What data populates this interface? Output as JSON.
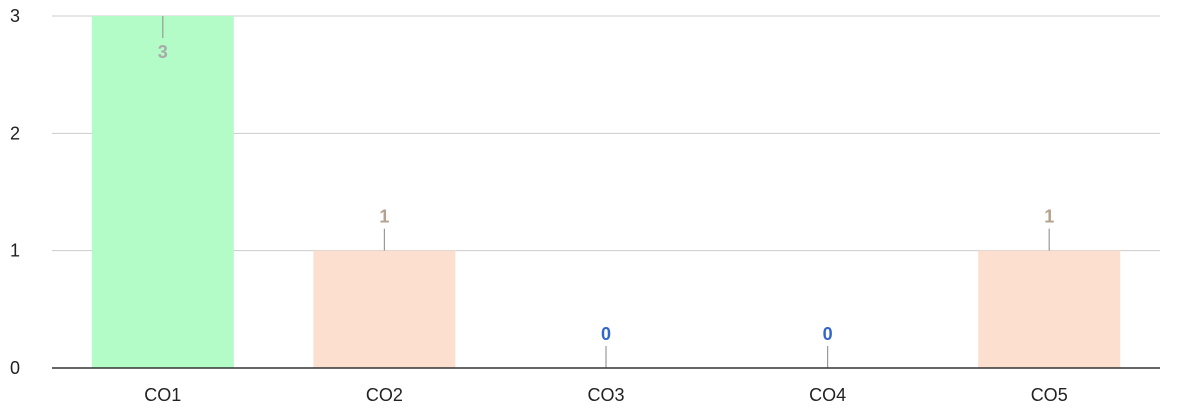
{
  "chart_data": {
    "type": "bar",
    "title": "",
    "xlabel": "",
    "ylabel": "",
    "categories": [
      "CO1",
      "CO2",
      "CO3",
      "CO4",
      "CO5"
    ],
    "values": [
      3,
      1,
      0,
      0,
      1
    ],
    "value_labels": [
      "3",
      "1",
      "0",
      "0",
      "1"
    ],
    "ylim": [
      0,
      3
    ],
    "yticks": [
      "0",
      "1",
      "2",
      "3"
    ],
    "grid": true,
    "legend": "none",
    "bar_colors": [
      "#b3fcc8",
      "#fcdfce",
      "#fcdfce",
      "#fcdfce",
      "#fcdfce"
    ],
    "label_colors": [
      "#a9a9a9",
      "#b2a28f",
      "#3366cc",
      "#3366cc",
      "#b2a28f"
    ],
    "gridline_color": "#cccccc",
    "baseline_color": "#333333"
  }
}
